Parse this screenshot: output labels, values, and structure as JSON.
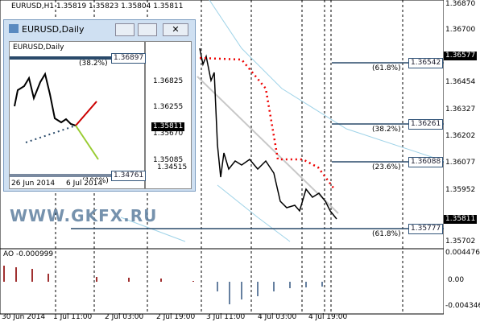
{
  "main_chart": {
    "header": "EURUSD,H1  1.35819 1.35823 1.35804 1.35811",
    "price_labels": [
      "1.36870",
      "1.36700",
      "1.36454",
      "1.36327",
      "1.36202",
      "1.36077",
      "1.35952",
      "1.35702"
    ],
    "current_price": "1.35811",
    "marker_price": "1.36577",
    "fib_levels": [
      {
        "pct": "(61.8%)",
        "price": "1.36542"
      },
      {
        "pct": "(38.2%)",
        "price": "1.36261"
      },
      {
        "pct": "(23.6%)",
        "price": "1.36088"
      },
      {
        "pct": "(61.8%)",
        "price": "1.35777"
      }
    ],
    "time_labels": [
      "30 Jun 2014",
      "1 Jul 11:00",
      "2 Jul 03:00",
      "2 Jul 19:00",
      "3 Jul 11:00",
      "4 Jul 03:00",
      "4 Jul 19:00"
    ],
    "indicator": {
      "label": "AO -0.000999",
      "scale": [
        "0.004476",
        "0.00",
        "-0.004346"
      ]
    }
  },
  "watermark": "WWW.GKFX.RU",
  "inset_window": {
    "title": "EURUSD,Daily",
    "header": "EURUSD,Daily",
    "price_labels": [
      "1.36825",
      "1.36255",
      "1.35670",
      "1.35085",
      "1.34515"
    ],
    "current_price": "1.35811",
    "fib_levels": [
      {
        "pct": "(38.2%)",
        "price": "1.36897"
      },
      {
        "pct": "(100%)",
        "price": "1.34761"
      }
    ],
    "time_labels": [
      "26 Jun 2014",
      "6 Jul 2014"
    ]
  }
}
